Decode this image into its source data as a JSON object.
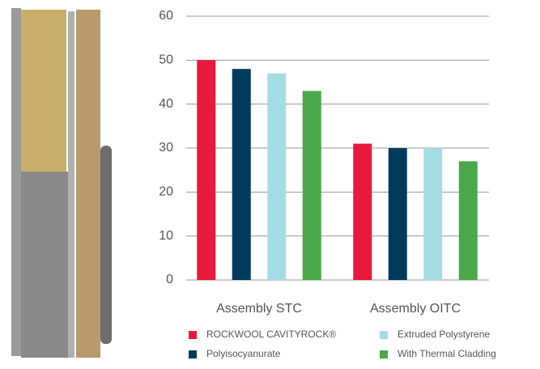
{
  "chart_data": {
    "type": "bar",
    "categories": [
      "Assembly STC",
      "Assembly OITC"
    ],
    "series": [
      {
        "name": "ROCKWOOL CAVITYROCK®",
        "color": "#e8193c",
        "values": [
          50,
          31
        ]
      },
      {
        "name": "Polyisocyanurate",
        "color": "#003b5c",
        "values": [
          48,
          30
        ]
      },
      {
        "name": "Extruded Polystyrene",
        "color": "#a3dde3",
        "values": [
          47,
          30
        ]
      },
      {
        "name": "With Thermal Cladding",
        "color": "#4aa84a",
        "values": [
          43,
          27
        ]
      }
    ],
    "ylim": [
      0,
      60
    ],
    "yticks": [
      0,
      10,
      20,
      30,
      40,
      50,
      60
    ],
    "grid": true
  }
}
